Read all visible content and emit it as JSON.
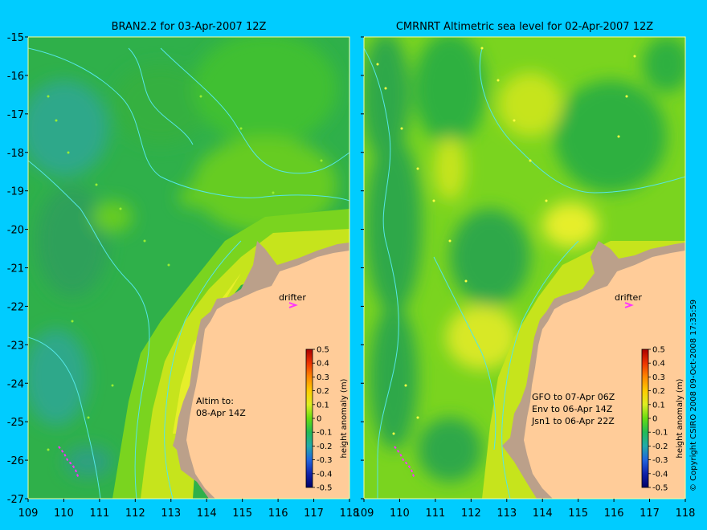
{
  "colors": {
    "background": "#00ccff",
    "land": "#ffcc99",
    "shelf": "#bba08a",
    "contour": "#55e6e6",
    "drifter": "#ff33ff",
    "ocean_base": "#33c24d"
  },
  "panels": [
    {
      "title": "BRAN2.2 for 03-Apr-2007 12Z",
      "annotation_lines": [
        "Altim to:",
        "08-Apr 14Z"
      ],
      "drifter_label": "drifter"
    },
    {
      "title": "CMRNRT Altimetric sea level  for 02-Apr-2007 12Z",
      "annotation_lines": [
        "GFO to 07-Apr 06Z",
        "Env to 06-Apr 14Z",
        "Jsn1 to 06-Apr 22Z"
      ],
      "drifter_label": "drifter"
    }
  ],
  "axes": {
    "x_ticks_left": [
      "109",
      "110",
      "111",
      "112",
      "113",
      "114",
      "115",
      "116",
      "117",
      "118"
    ],
    "x_ticks_right": [
      "109",
      "110",
      "111",
      "112",
      "113",
      "114",
      "115",
      "116",
      "117",
      "118"
    ],
    "y_ticks": [
      "-15",
      "-16",
      "-17",
      "-18",
      "-19",
      "-20",
      "-21",
      "-22",
      "-23",
      "-24",
      "-25",
      "-26",
      "-27"
    ],
    "lon_range": [
      109,
      118
    ],
    "lat_range": [
      -27,
      -15
    ]
  },
  "colorbar": {
    "label": "height anomaly (m)",
    "ticks": [
      "0.5",
      "0.4",
      "0.3",
      "0.2",
      "0.1",
      "0",
      "-0.1",
      "-0.2",
      "-0.3",
      "-0.4",
      "-0.5"
    ],
    "range": [
      -0.5,
      0.5
    ]
  },
  "copyright": "© Copyright CSIRO 2008   09-Oct-2008 17:35:59"
}
